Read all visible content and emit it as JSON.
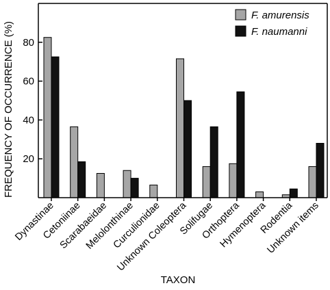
{
  "chart_data": {
    "type": "bar",
    "xlabel": "TAXON",
    "ylabel": "FREQUENCY OF OCCURRENCE (%)",
    "ylim": [
      0,
      100
    ],
    "yticks": [
      20,
      40,
      60,
      80
    ],
    "grid": false,
    "legend": "top-right",
    "categories": [
      "Dynastinae",
      "Cetoniinae",
      "Scarabaeidae",
      "Melolonthinae",
      "Curculionidae",
      "Unknown Coleoptera",
      "Solifugae",
      "Orthoptera",
      "Hymenoptera",
      "Rodentia",
      "Unknown items"
    ],
    "series": [
      {
        "name": "F. amurensis",
        "color": "#a6a6a6",
        "values": [
          82.5,
          36.5,
          12.5,
          14,
          6.5,
          71.5,
          16,
          17.5,
          3,
          1.5,
          16
        ]
      },
      {
        "name": "F. naumanni",
        "color": "#111111",
        "values": [
          72.5,
          18.5,
          0,
          10,
          0,
          50,
          36.5,
          54.5,
          0,
          4.5,
          28
        ]
      }
    ]
  }
}
